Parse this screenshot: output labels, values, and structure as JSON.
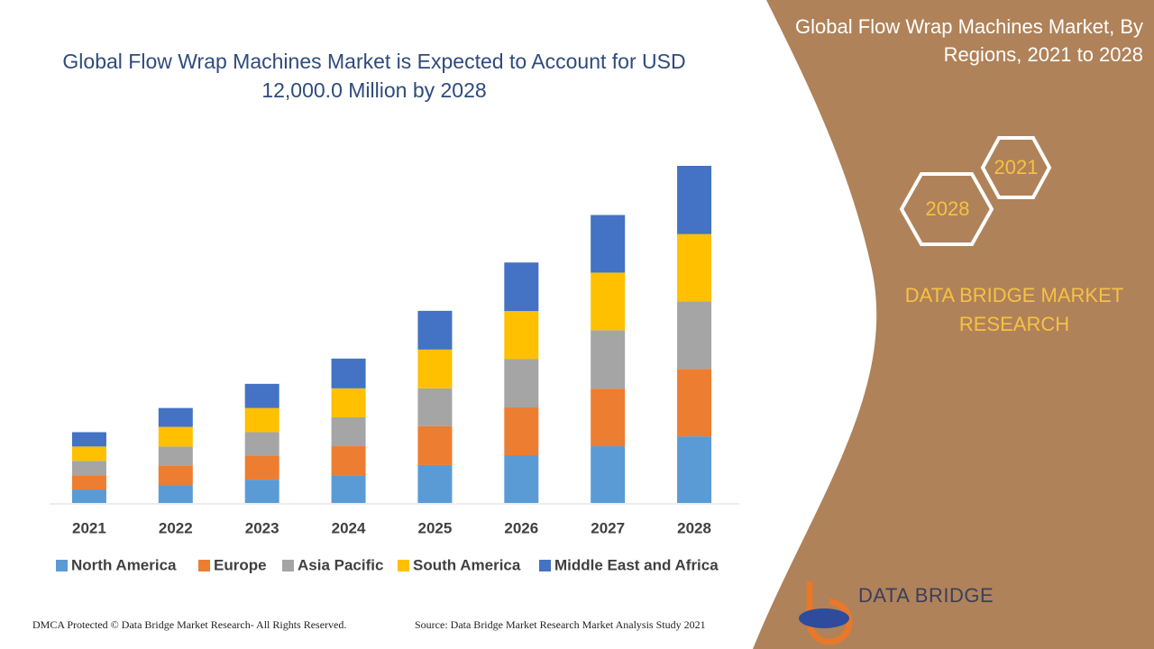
{
  "chart_data": {
    "type": "bar",
    "stacked": true,
    "title": "Global Flow Wrap Machines Market is Expected to Account for USD 12,000.0 Million by 2028",
    "categories": [
      "2021",
      "2022",
      "2023",
      "2024",
      "2025",
      "2026",
      "2027",
      "2028"
    ],
    "series": [
      {
        "name": "North America",
        "color": "#5b9bd5",
        "values": [
          480,
          640,
          830,
          990,
          1350,
          1700,
          2020,
          2370
        ]
      },
      {
        "name": "Europe",
        "color": "#ed7d31",
        "values": [
          510,
          700,
          860,
          1030,
          1380,
          1700,
          2050,
          2400
        ]
      },
      {
        "name": "Asia Pacific",
        "color": "#a5a5a5",
        "values": [
          510,
          670,
          830,
          1030,
          1350,
          1730,
          2080,
          2400
        ]
      },
      {
        "name": "South America",
        "color": "#ffc000",
        "values": [
          510,
          700,
          860,
          1030,
          1380,
          1700,
          2050,
          2400
        ]
      },
      {
        "name": "Middle East and Africa",
        "color": "#4472c4",
        "values": [
          510,
          670,
          860,
          1060,
          1380,
          1730,
          2050,
          2430
        ]
      }
    ]
  },
  "side_panel": {
    "title": "Global Flow Wrap Machines Market, By Regions, 2021 to 2028",
    "badges": [
      "2021",
      "2028"
    ],
    "brand": "DATA BRIDGE MARKET RESEARCH",
    "logo": "DATA BRIDGE"
  },
  "footer": {
    "left": "DMCA Protected © Data Bridge Market Research- All Rights Reserved.",
    "right": "Source: Data Bridge Market Research Market Analysis Study 2021"
  }
}
